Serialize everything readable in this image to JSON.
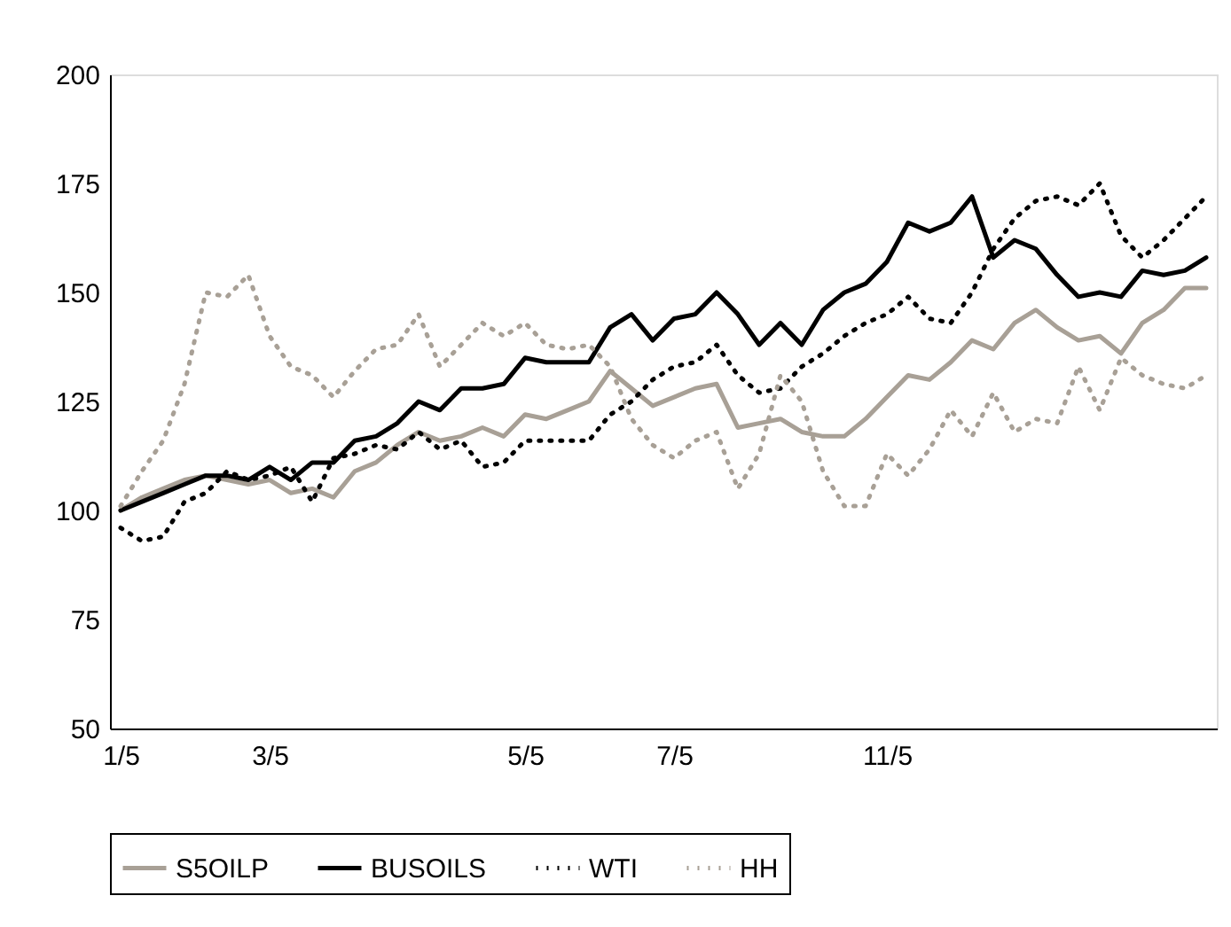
{
  "chart_data": {
    "type": "line",
    "categories": [
      "1/5",
      null,
      null,
      null,
      null,
      null,
      null,
      "3/5",
      null,
      null,
      null,
      null,
      null,
      null,
      null,
      null,
      null,
      null,
      null,
      "5/5",
      null,
      null,
      null,
      null,
      null,
      null,
      "7/5",
      null,
      null,
      null,
      null,
      null,
      null,
      null,
      null,
      null,
      "11/5",
      null,
      null,
      null,
      null,
      null,
      null,
      null,
      null,
      null,
      null,
      null,
      null,
      null,
      null,
      null
    ],
    "ylim": [
      50,
      200
    ],
    "yticks": [
      50,
      75,
      100,
      125,
      150,
      175,
      200
    ],
    "grid": false,
    "legend": "bottom",
    "marker": "none",
    "series": [
      {
        "name": "S5OILP",
        "color": "#a8a096",
        "line_style": "solid",
        "values": [
          100,
          103,
          105,
          107,
          108,
          107,
          106,
          107,
          104,
          105,
          103,
          109,
          111,
          115,
          118,
          116,
          117,
          119,
          117,
          122,
          121,
          123,
          125,
          132,
          128,
          124,
          126,
          128,
          129,
          119,
          120,
          121,
          118,
          117,
          117,
          121,
          126,
          131,
          130,
          134,
          139,
          137,
          143,
          146,
          142,
          139,
          140,
          136,
          143,
          146,
          151,
          151
        ]
      },
      {
        "name": "BUSOILS",
        "color": "#000000",
        "line_style": "solid",
        "values": [
          100,
          102,
          104,
          106,
          108,
          108,
          107,
          110,
          107,
          111,
          111,
          116,
          117,
          120,
          125,
          123,
          128,
          128,
          129,
          135,
          134,
          134,
          134,
          142,
          145,
          139,
          144,
          145,
          150,
          145,
          138,
          143,
          138,
          146,
          150,
          152,
          157,
          166,
          164,
          166,
          172,
          158,
          162,
          160,
          154,
          149,
          150,
          149,
          155,
          154,
          155,
          158
        ]
      },
      {
        "name": "WTI",
        "color": "#000000",
        "line_style": "dotted",
        "values": [
          96,
          93,
          94,
          102,
          104,
          109,
          107,
          108,
          110,
          102,
          112,
          113,
          115,
          114,
          118,
          114,
          116,
          110,
          111,
          116,
          116,
          116,
          116,
          122,
          125,
          130,
          133,
          134,
          138,
          131,
          127,
          128,
          133,
          136,
          140,
          143,
          145,
          149,
          144,
          143,
          150,
          160,
          167,
          171,
          172,
          170,
          175,
          163,
          158,
          162,
          167,
          172
        ]
      },
      {
        "name": "HH",
        "color": "#a8a096",
        "line_style": "dotted",
        "values": [
          101,
          109,
          116,
          129,
          150,
          149,
          154,
          140,
          133,
          131,
          126,
          132,
          137,
          138,
          145,
          133,
          138,
          143,
          140,
          143,
          138,
          137,
          138,
          133,
          121,
          115,
          112,
          116,
          118,
          105,
          113,
          131,
          125,
          109,
          101,
          101,
          113,
          108,
          114,
          123,
          117,
          127,
          118,
          121,
          120,
          133,
          123,
          135,
          131,
          129,
          128,
          131
        ]
      }
    ]
  }
}
